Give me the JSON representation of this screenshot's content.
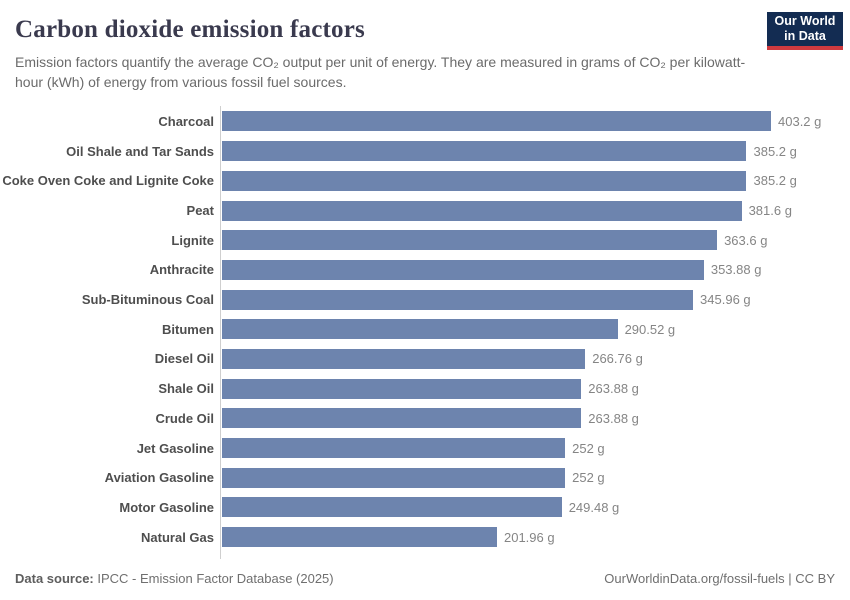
{
  "header": {
    "title": "Carbon dioxide emission factors",
    "subtitle": "Emission factors quantify the average CO₂ output per unit of energy. They are measured in grams of CO₂ per kilowatt-hour (kWh) of energy from various fossil fuel sources."
  },
  "logo": {
    "line1": "Our World",
    "line2": "in Data",
    "bg_color": "#132c52",
    "accent_color": "#cf3a3f"
  },
  "chart_data": {
    "type": "bar",
    "orientation": "horizontal",
    "title": "Carbon dioxide emission factors",
    "unit": "grams of CO₂ per kWh",
    "xlim": [
      0,
      403.2
    ],
    "grid": false,
    "bar_color": "#6d84ae",
    "categories": [
      "Charcoal",
      "Oil Shale and Tar Sands",
      "Coke Oven Coke and Lignite Coke",
      "Peat",
      "Lignite",
      "Anthracite",
      "Sub-Bituminous Coal",
      "Bitumen",
      "Diesel Oil",
      "Shale Oil",
      "Crude Oil",
      "Jet Gasoline",
      "Aviation Gasoline",
      "Motor Gasoline",
      "Natural Gas"
    ],
    "values": [
      403.2,
      385.2,
      385.2,
      381.6,
      363.6,
      353.88,
      345.96,
      290.52,
      266.76,
      263.88,
      263.88,
      252,
      252,
      249.48,
      201.96
    ],
    "value_labels": [
      "403.2 g",
      "385.2 g",
      "385.2 g",
      "381.6 g",
      "363.6 g",
      "353.88 g",
      "345.96 g",
      "290.52 g",
      "266.76 g",
      "263.88 g",
      "263.88 g",
      "252 g",
      "252 g",
      "249.48 g",
      "201.96 g"
    ]
  },
  "footer": {
    "source_label": "Data source:",
    "source_text": " IPCC - Emission Factor Database (2025)",
    "link_text": "OurWorldinData.org/fossil-fuels | CC BY"
  }
}
